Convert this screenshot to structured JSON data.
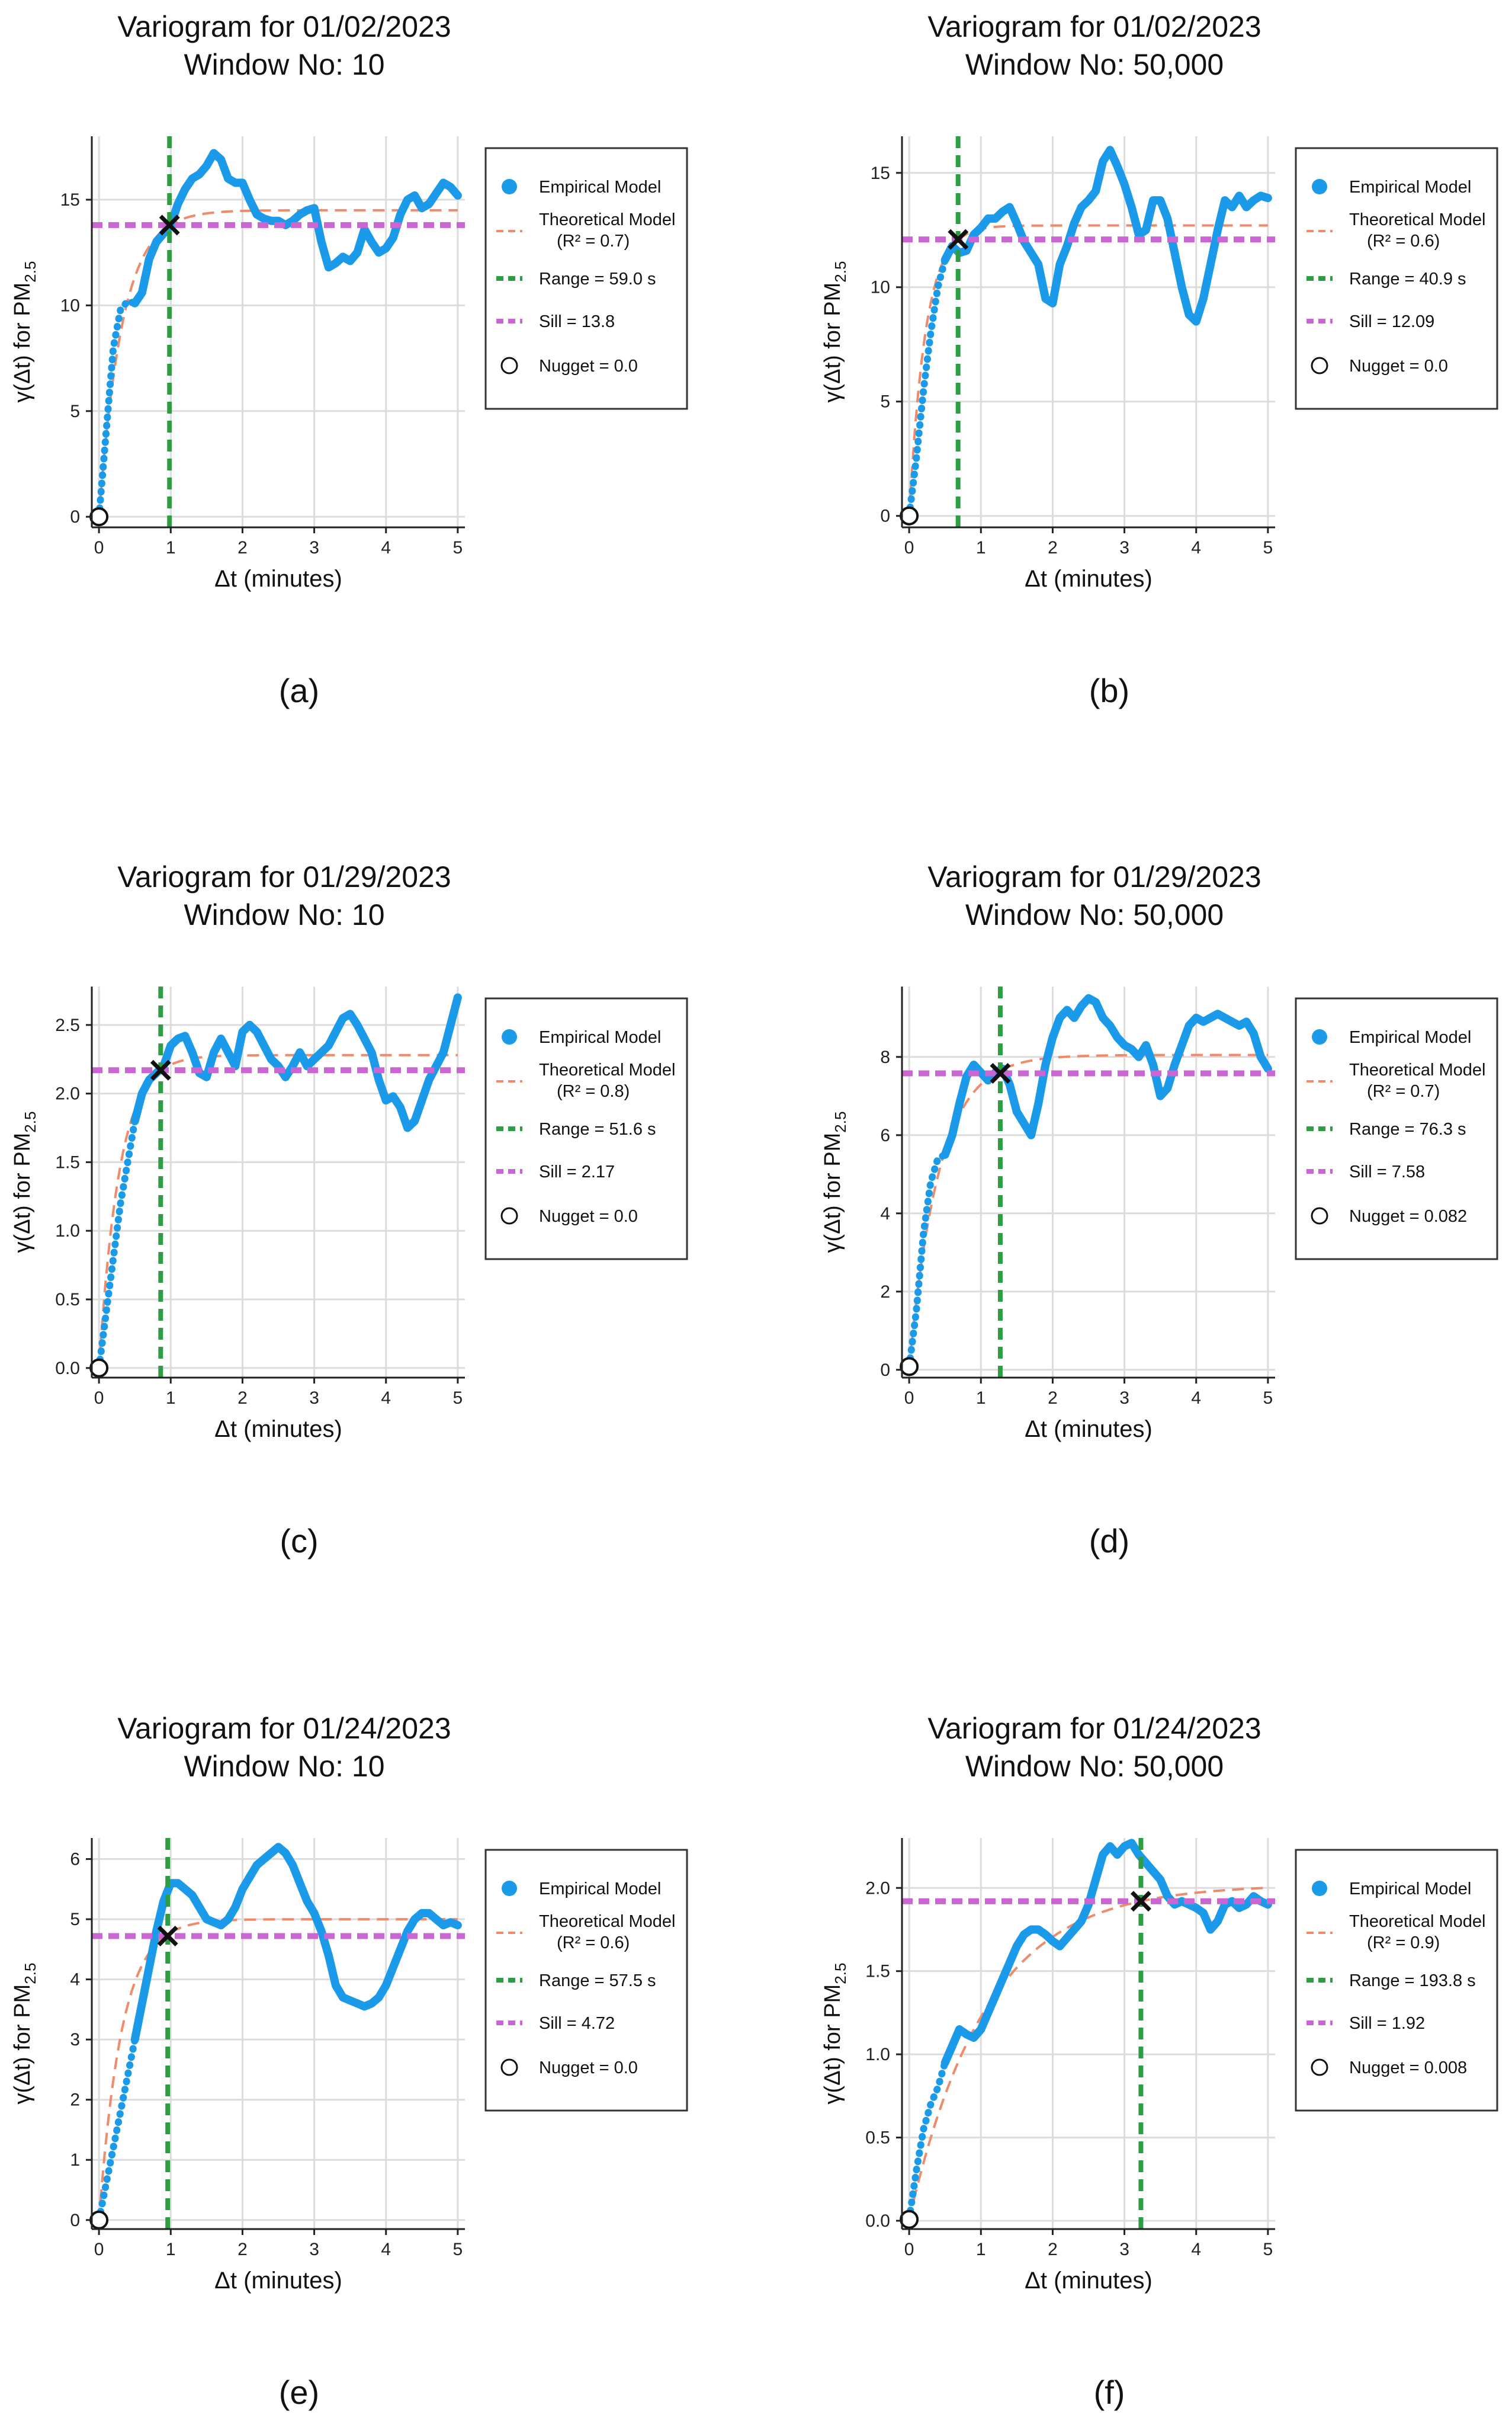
{
  "figure": {
    "axis_units": "Δt (minutes)"
  },
  "colors": {
    "empirical": "#1a9ae8",
    "theoretical": "#ef8a6a",
    "range": "#2e9e45",
    "sill": "#c966d2",
    "grid": "#dcdcdc",
    "axis": "#222222"
  },
  "chart_data": [
    {
      "panel_label": "(a)",
      "type": "line",
      "title": "Variogram for 01/02/2023",
      "subtitle": "Window No: 10",
      "xlabel": "Δt (minutes)",
      "ylabel": "γ(Δt) for PM",
      "ylabel_sub": "2.5",
      "xlim": [
        -0.1,
        5.1
      ],
      "ylim": [
        -0.5,
        18
      ],
      "xticks": [
        0,
        1,
        2,
        3,
        4,
        5
      ],
      "xtick_labels": [
        "0",
        "1",
        "2",
        "3",
        "4",
        "5"
      ],
      "yticks": [
        0,
        5,
        10,
        15
      ],
      "ytick_labels": [
        "0",
        "5",
        "10",
        "15"
      ],
      "grid": true,
      "legend_position": "right",
      "legend": {
        "empirical": "Empirical Model",
        "theoretical": "Theoretical Model",
        "r2": "(R² = 0.7)",
        "range": "Range = 59.0 s",
        "sill": "Sill = 13.8",
        "nugget": "Nugget =  0.0"
      },
      "range_minutes": 0.983,
      "sill": 13.8,
      "nugget": 0.0,
      "theoretical_asymptote": 14.5,
      "empirical_x": [
        0,
        0.1,
        0.2,
        0.3,
        0.4,
        0.5,
        0.6,
        0.7,
        0.8,
        0.9,
        1.0,
        1.1,
        1.2,
        1.3,
        1.4,
        1.5,
        1.6,
        1.7,
        1.8,
        1.9,
        2.0,
        2.1,
        2.2,
        2.3,
        2.4,
        2.5,
        2.6,
        2.7,
        2.8,
        2.9,
        3.0,
        3.1,
        3.2,
        3.3,
        3.4,
        3.5,
        3.6,
        3.7,
        3.8,
        3.9,
        4.0,
        4.1,
        4.2,
        4.3,
        4.4,
        4.5,
        4.6,
        4.7,
        4.8,
        4.9,
        5.0
      ],
      "empirical_y": [
        0,
        4.0,
        8.0,
        9.8,
        10.2,
        10.1,
        10.6,
        12.2,
        13.0,
        13.4,
        13.8,
        14.8,
        15.5,
        16.0,
        16.2,
        16.6,
        17.2,
        16.9,
        16.0,
        15.8,
        15.8,
        15.0,
        14.3,
        14.1,
        14.0,
        14.0,
        13.8,
        14.0,
        14.3,
        14.5,
        14.6,
        13.0,
        11.8,
        12.0,
        12.3,
        12.1,
        12.5,
        13.6,
        13.0,
        12.5,
        12.7,
        13.2,
        14.3,
        15.0,
        15.2,
        14.6,
        14.8,
        15.3,
        15.8,
        15.6,
        15.2
      ]
    },
    {
      "panel_label": "(b)",
      "type": "line",
      "title": "Variogram for 01/02/2023",
      "subtitle": "Window No: 50,000",
      "xlabel": "Δt (minutes)",
      "ylabel": "γ(Δt) for PM",
      "ylabel_sub": "2.5",
      "xlim": [
        -0.1,
        5.1
      ],
      "ylim": [
        -0.5,
        16.6
      ],
      "xticks": [
        0,
        1,
        2,
        3,
        4,
        5
      ],
      "xtick_labels": [
        "0",
        "1",
        "2",
        "3",
        "4",
        "5"
      ],
      "yticks": [
        0,
        5,
        10,
        15
      ],
      "ytick_labels": [
        "0",
        "5",
        "10",
        "15"
      ],
      "grid": true,
      "legend_position": "right",
      "legend": {
        "empirical": "Empirical Model",
        "theoretical": "Theoretical Model",
        "r2": "(R² = 0.6)",
        "range": "Range = 40.9 s",
        "sill": "Sill = 12.09",
        "nugget": "Nugget =  0.0"
      },
      "range_minutes": 0.682,
      "sill": 12.09,
      "nugget": 0.0,
      "theoretical_asymptote": 12.7,
      "empirical_x": [
        0,
        0.1,
        0.2,
        0.3,
        0.4,
        0.5,
        0.6,
        0.7,
        0.8,
        0.9,
        1.0,
        1.1,
        1.2,
        1.3,
        1.4,
        1.5,
        1.6,
        1.7,
        1.8,
        1.9,
        2.0,
        2.1,
        2.2,
        2.3,
        2.4,
        2.5,
        2.6,
        2.7,
        2.8,
        2.9,
        3.0,
        3.1,
        3.2,
        3.3,
        3.4,
        3.5,
        3.6,
        3.7,
        3.8,
        3.9,
        4.0,
        4.1,
        4.2,
        4.3,
        4.4,
        4.5,
        4.6,
        4.7,
        4.8,
        4.9,
        5.0
      ],
      "empirical_y": [
        0,
        2.5,
        5.5,
        8.0,
        10.0,
        11.2,
        11.8,
        11.5,
        11.6,
        12.3,
        12.6,
        13.0,
        13.0,
        13.3,
        13.5,
        12.8,
        12.0,
        11.5,
        11.0,
        9.5,
        9.3,
        11.0,
        11.8,
        12.8,
        13.5,
        13.8,
        14.2,
        15.5,
        16.0,
        15.3,
        14.5,
        13.5,
        12.3,
        12.5,
        13.8,
        13.8,
        13.0,
        11.5,
        10.0,
        8.8,
        8.5,
        9.5,
        11.0,
        12.5,
        13.8,
        13.5,
        14.0,
        13.5,
        13.8,
        14.0,
        13.9
      ]
    },
    {
      "panel_label": "(c)",
      "type": "line",
      "title": "Variogram for 01/29/2023",
      "subtitle": "Window No: 10",
      "xlabel": "Δt (minutes)",
      "ylabel": "γ(Δt) for PM",
      "ylabel_sub": "2.5",
      "xlim": [
        -0.1,
        5.1
      ],
      "ylim": [
        -0.07,
        2.78
      ],
      "xticks": [
        0,
        1,
        2,
        3,
        4,
        5
      ],
      "xtick_labels": [
        "0",
        "1",
        "2",
        "3",
        "4",
        "5"
      ],
      "yticks": [
        0,
        0.5,
        1.0,
        1.5,
        2.0,
        2.5
      ],
      "ytick_labels": [
        "0.0",
        "0.5",
        "1.0",
        "1.5",
        "2.0",
        "2.5"
      ],
      "grid": true,
      "legend_position": "right",
      "legend": {
        "empirical": "Empirical Model",
        "theoretical": "Theoretical Model",
        "r2": "(R² = 0.8)",
        "range": "Range = 51.6 s",
        "sill": "Sill = 2.17",
        "nugget": "Nugget =  0.0"
      },
      "range_minutes": 0.86,
      "sill": 2.17,
      "nugget": 0.0,
      "theoretical_asymptote": 2.28,
      "empirical_x": [
        0,
        0.1,
        0.2,
        0.3,
        0.4,
        0.5,
        0.6,
        0.7,
        0.8,
        0.9,
        1.0,
        1.1,
        1.2,
        1.3,
        1.4,
        1.5,
        1.6,
        1.7,
        1.8,
        1.9,
        2.0,
        2.1,
        2.2,
        2.3,
        2.4,
        2.5,
        2.6,
        2.7,
        2.8,
        2.9,
        3.0,
        3.1,
        3.2,
        3.3,
        3.4,
        3.5,
        3.6,
        3.7,
        3.8,
        3.9,
        4.0,
        4.1,
        4.2,
        4.3,
        4.4,
        4.5,
        4.6,
        4.7,
        4.8,
        4.9,
        5.0
      ],
      "empirical_y": [
        0,
        0.4,
        0.8,
        1.2,
        1.5,
        1.8,
        2.0,
        2.1,
        2.15,
        2.2,
        2.35,
        2.4,
        2.42,
        2.3,
        2.15,
        2.12,
        2.3,
        2.4,
        2.3,
        2.2,
        2.45,
        2.5,
        2.45,
        2.35,
        2.25,
        2.2,
        2.12,
        2.2,
        2.3,
        2.2,
        2.25,
        2.3,
        2.35,
        2.45,
        2.55,
        2.58,
        2.5,
        2.4,
        2.3,
        2.1,
        1.95,
        1.98,
        1.9,
        1.75,
        1.8,
        1.95,
        2.1,
        2.2,
        2.3,
        2.5,
        2.7
      ]
    },
    {
      "panel_label": "(d)",
      "type": "line",
      "title": "Variogram for 01/29/2023",
      "subtitle": "Window No: 50,000",
      "xlabel": "Δt (minutes)",
      "ylabel": "γ(Δt) for PM",
      "ylabel_sub": "2.5",
      "xlim": [
        -0.1,
        5.1
      ],
      "ylim": [
        -0.2,
        9.8
      ],
      "xticks": [
        0,
        1,
        2,
        3,
        4,
        5
      ],
      "xtick_labels": [
        "0",
        "1",
        "2",
        "3",
        "4",
        "5"
      ],
      "yticks": [
        0,
        2,
        4,
        6,
        8
      ],
      "ytick_labels": [
        "0",
        "2",
        "4",
        "6",
        "8"
      ],
      "grid": true,
      "legend_position": "right",
      "legend": {
        "empirical": "Empirical Model",
        "theoretical": "Theoretical Model",
        "r2": "(R² = 0.7)",
        "range": "Range = 76.3 s",
        "sill": "Sill = 7.58",
        "nugget": "Nugget =  0.082"
      },
      "range_minutes": 1.27,
      "sill": 7.58,
      "nugget": 0.082,
      "theoretical_asymptote": 8.05,
      "empirical_x": [
        0,
        0.1,
        0.2,
        0.3,
        0.4,
        0.5,
        0.6,
        0.7,
        0.8,
        0.9,
        1.0,
        1.1,
        1.2,
        1.3,
        1.4,
        1.5,
        1.6,
        1.7,
        1.8,
        1.9,
        2.0,
        2.1,
        2.2,
        2.3,
        2.4,
        2.5,
        2.6,
        2.7,
        2.8,
        2.9,
        3.0,
        3.1,
        3.2,
        3.3,
        3.4,
        3.5,
        3.6,
        3.7,
        3.8,
        3.9,
        4.0,
        4.1,
        4.2,
        4.3,
        4.4,
        4.5,
        4.6,
        4.7,
        4.8,
        4.9,
        5.0
      ],
      "empirical_y": [
        0.08,
        1.5,
        3.5,
        4.8,
        5.4,
        5.5,
        6.0,
        6.8,
        7.5,
        7.8,
        7.6,
        7.4,
        7.6,
        7.7,
        7.3,
        6.6,
        6.3,
        6.0,
        6.8,
        7.8,
        8.5,
        9.0,
        9.2,
        9.0,
        9.3,
        9.5,
        9.4,
        9.0,
        8.8,
        8.5,
        8.3,
        8.2,
        8.0,
        8.3,
        7.8,
        7.0,
        7.2,
        7.8,
        8.3,
        8.8,
        9.0,
        8.9,
        9.0,
        9.1,
        9.0,
        8.9,
        8.8,
        8.9,
        8.6,
        8.0,
        7.7
      ]
    },
    {
      "panel_label": "(e)",
      "type": "line",
      "title": "Variogram for 01/24/2023",
      "subtitle": "Window No: 10",
      "xlabel": "Δt (minutes)",
      "ylabel": "γ(Δt) for PM",
      "ylabel_sub": "2.5",
      "xlim": [
        -0.1,
        5.1
      ],
      "ylim": [
        -0.15,
        6.35
      ],
      "xticks": [
        0,
        1,
        2,
        3,
        4,
        5
      ],
      "xtick_labels": [
        "0",
        "1",
        "2",
        "3",
        "4",
        "5"
      ],
      "yticks": [
        0,
        1,
        2,
        3,
        4,
        5,
        6
      ],
      "ytick_labels": [
        "0",
        "1",
        "2",
        "3",
        "4",
        "5",
        "6"
      ],
      "grid": true,
      "legend_position": "right",
      "legend": {
        "empirical": "Empirical Model",
        "theoretical": "Theoretical Model",
        "r2": "(R² = 0.6)",
        "range": "Range = 57.5 s",
        "sill": "Sill = 4.72",
        "nugget": "Nugget =  0.0"
      },
      "range_minutes": 0.958,
      "sill": 4.72,
      "nugget": 0.0,
      "theoretical_asymptote": 5.0,
      "empirical_x": [
        0,
        0.1,
        0.2,
        0.3,
        0.4,
        0.5,
        0.6,
        0.7,
        0.8,
        0.9,
        1.0,
        1.1,
        1.2,
        1.3,
        1.4,
        1.5,
        1.6,
        1.7,
        1.8,
        1.9,
        2.0,
        2.1,
        2.2,
        2.3,
        2.4,
        2.5,
        2.6,
        2.7,
        2.8,
        2.9,
        3.0,
        3.1,
        3.2,
        3.3,
        3.4,
        3.5,
        3.6,
        3.7,
        3.8,
        3.9,
        4.0,
        4.1,
        4.2,
        4.3,
        4.4,
        4.5,
        4.6,
        4.7,
        4.8,
        4.9,
        5.0
      ],
      "empirical_y": [
        0,
        0.6,
        1.2,
        1.8,
        2.4,
        3.0,
        3.6,
        4.2,
        4.8,
        5.3,
        5.6,
        5.6,
        5.5,
        5.4,
        5.2,
        5.0,
        4.95,
        4.9,
        5.0,
        5.2,
        5.5,
        5.7,
        5.9,
        6.0,
        6.1,
        6.2,
        6.1,
        5.9,
        5.6,
        5.3,
        5.1,
        4.8,
        4.4,
        3.9,
        3.7,
        3.65,
        3.6,
        3.55,
        3.6,
        3.7,
        3.9,
        4.2,
        4.5,
        4.8,
        5.0,
        5.1,
        5.1,
        5.0,
        4.9,
        4.95,
        4.9
      ]
    },
    {
      "panel_label": "(f)",
      "type": "line",
      "title": "Variogram for 01/24/2023",
      "subtitle": "Window No: 50,000",
      "xlabel": "Δt (minutes)",
      "ylabel": "γ(Δt) for PM",
      "ylabel_sub": "2.5",
      "xlim": [
        -0.1,
        5.1
      ],
      "ylim": [
        -0.05,
        2.3
      ],
      "xticks": [
        0,
        1,
        2,
        3,
        4,
        5
      ],
      "xtick_labels": [
        "0",
        "1",
        "2",
        "3",
        "4",
        "5"
      ],
      "yticks": [
        0,
        0.5,
        1.0,
        1.5,
        2.0
      ],
      "ytick_labels": [
        "0.0",
        "0.5",
        "1.0",
        "1.5",
        "2.0"
      ],
      "grid": true,
      "legend_position": "right",
      "legend": {
        "empirical": "Empirical Model",
        "theoretical": "Theoretical Model",
        "r2": "(R² = 0.9)",
        "range": "Range = 193.8 s",
        "sill": "Sill = 1.92",
        "nugget": "Nugget =  0.008"
      },
      "range_minutes": 3.23,
      "sill": 1.92,
      "nugget": 0.008,
      "theoretical_asymptote": 2.02,
      "empirical_x": [
        0,
        0.1,
        0.2,
        0.3,
        0.4,
        0.5,
        0.6,
        0.7,
        0.8,
        0.9,
        1.0,
        1.1,
        1.2,
        1.3,
        1.4,
        1.5,
        1.6,
        1.7,
        1.8,
        1.9,
        2.0,
        2.1,
        2.2,
        2.3,
        2.4,
        2.5,
        2.6,
        2.7,
        2.8,
        2.9,
        3.0,
        3.1,
        3.2,
        3.3,
        3.4,
        3.5,
        3.6,
        3.7,
        3.8,
        3.9,
        4.0,
        4.1,
        4.2,
        4.3,
        4.4,
        4.5,
        4.6,
        4.7,
        4.8,
        4.9,
        5.0
      ],
      "empirical_y": [
        0.01,
        0.3,
        0.55,
        0.7,
        0.8,
        0.95,
        1.05,
        1.15,
        1.12,
        1.1,
        1.15,
        1.25,
        1.35,
        1.45,
        1.55,
        1.65,
        1.72,
        1.75,
        1.75,
        1.72,
        1.68,
        1.65,
        1.7,
        1.75,
        1.8,
        1.9,
        2.05,
        2.2,
        2.25,
        2.2,
        2.25,
        2.27,
        2.2,
        2.15,
        2.1,
        2.05,
        1.95,
        1.9,
        1.92,
        1.9,
        1.88,
        1.85,
        1.75,
        1.8,
        1.9,
        1.92,
        1.88,
        1.9,
        1.95,
        1.92,
        1.9
      ]
    }
  ]
}
